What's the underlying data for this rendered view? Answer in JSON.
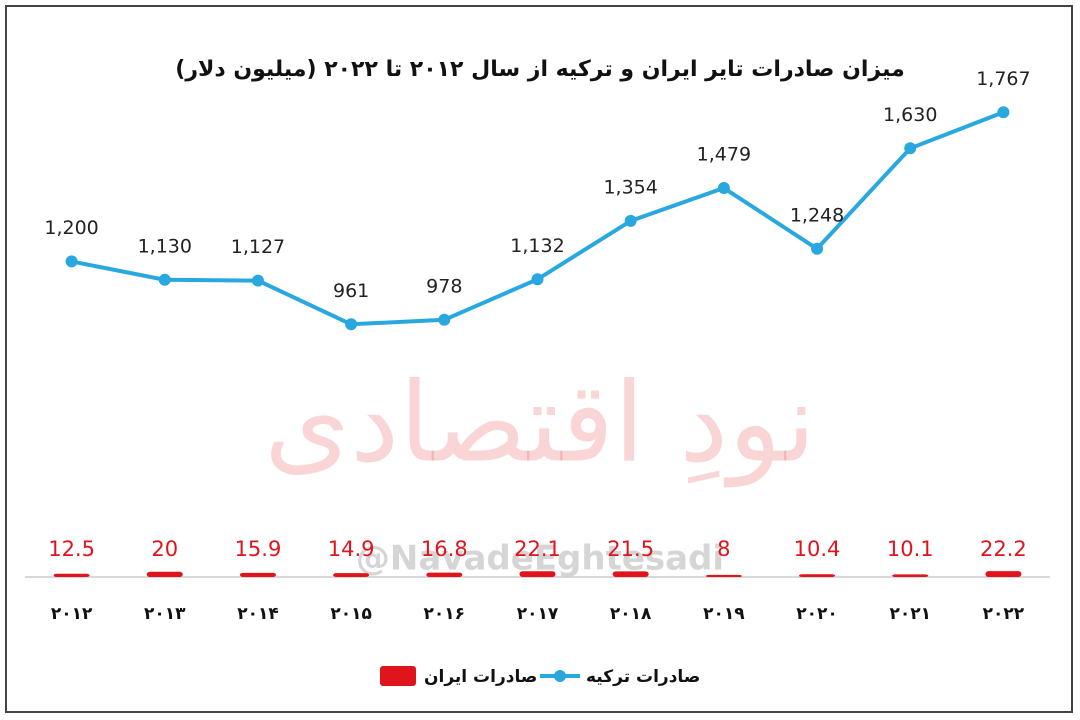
{
  "chart_data": {
    "type": "line-bar",
    "title": "میزان صادرات تایر ایران و ترکیه از سال ۲۰۱۲ تا ۲۰۲۲ (میلیون دلار)",
    "categories": [
      "۲۰۱۲",
      "۲۰۱۳",
      "۲۰۱۴",
      "۲۰۱۵",
      "۲۰۱۶",
      "۲۰۱۷",
      "۲۰۱۸",
      "۲۰۱۹",
      "۲۰۲۰",
      "۲۰۲۱",
      "۲۰۲۲"
    ],
    "series": [
      {
        "name": "صادرات ترکیه",
        "type": "line",
        "color": "#29a8e0",
        "values": [
          1200,
          1130,
          1127,
          961,
          978,
          1132,
          1354,
          1479,
          1248,
          1630,
          1767
        ],
        "value_labels": [
          "1,200",
          "1,130",
          "1,127",
          "961",
          "978",
          "1,132",
          "1,354",
          "1,479",
          "1,248",
          "1,630",
          "1,767"
        ]
      },
      {
        "name": "صادرات ایران",
        "type": "bar",
        "color": "#e0141c",
        "values": [
          12.5,
          20,
          15.9,
          14.9,
          16.8,
          22.1,
          21.5,
          8,
          10.4,
          10.1,
          22.2
        ]
      }
    ],
    "ylim": [
      0,
      2000
    ],
    "watermark": {
      "text": "نودِ اقتصادی",
      "handle": "@NavadeEghtesadi"
    }
  }
}
